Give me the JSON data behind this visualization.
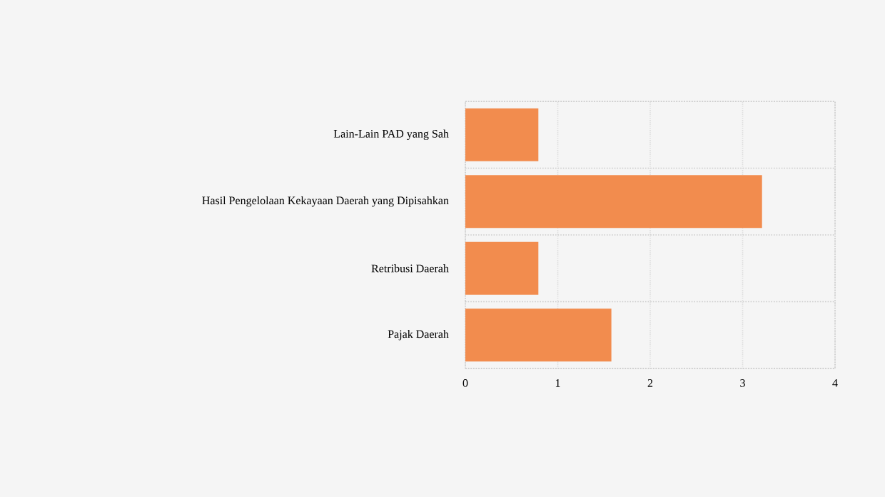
{
  "chart_data": {
    "type": "bar",
    "orientation": "horizontal",
    "categories": [
      "Lain-Lain PAD yang Sah",
      "Hasil Pengelolaan Kekayaan Daerah yang Dipisahkan",
      "Retribusi Daerah",
      "Pajak Daerah"
    ],
    "values": [
      0.79,
      3.21,
      0.79,
      1.58
    ],
    "color": "#f28c4e",
    "xlim": [
      0,
      4
    ],
    "xticks": [
      0,
      1,
      2,
      3,
      4
    ],
    "grid": true
  }
}
